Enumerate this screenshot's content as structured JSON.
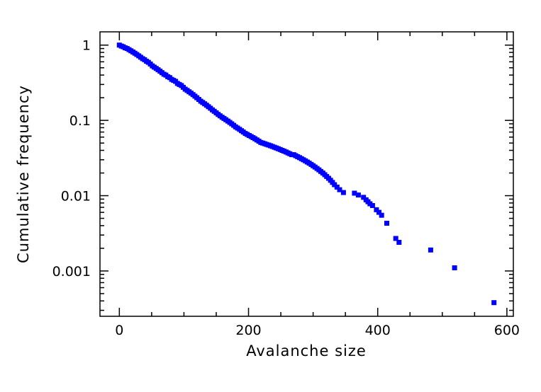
{
  "chart_data": {
    "type": "scatter",
    "xlabel": "Avalanche size",
    "ylabel": "Cumulative frequency",
    "xlim": [
      -30,
      610
    ],
    "ylim": [
      0.00025,
      1.5
    ],
    "yscale": "log",
    "grid": false,
    "marker_color": "#0000ff",
    "x_ticks": [
      0,
      200,
      400,
      600
    ],
    "x_tick_labels": [
      "0",
      "200",
      "400",
      "600"
    ],
    "y_ticks": [
      1,
      0.1,
      0.01,
      0.001
    ],
    "y_tick_labels": [
      "1",
      "0.1",
      "0.01",
      "0.001"
    ],
    "points": {
      "x": [
        0,
        3,
        6,
        9,
        12,
        15,
        18,
        21,
        24,
        27,
        30,
        33,
        36,
        39,
        42,
        45,
        48,
        51,
        54,
        57,
        60,
        63,
        66,
        69,
        72,
        75,
        78,
        81,
        84,
        87,
        90,
        93,
        96,
        99,
        102,
        105,
        108,
        111,
        114,
        117,
        120,
        123,
        126,
        129,
        132,
        135,
        138,
        141,
        144,
        147,
        150,
        153,
        156,
        159,
        162,
        165,
        168,
        171,
        174,
        177,
        180,
        183,
        186,
        189,
        192,
        195,
        198,
        201,
        204,
        207,
        210,
        213,
        216,
        219,
        222,
        225,
        228,
        231,
        234,
        237,
        240,
        243,
        246,
        249,
        252,
        255,
        258,
        261,
        264,
        267,
        270,
        273,
        276,
        279,
        282,
        285,
        288,
        291,
        294,
        297,
        300,
        303,
        306,
        309,
        312,
        315,
        318,
        321,
        324,
        327,
        330,
        333,
        337,
        341,
        347,
        364,
        370,
        378,
        382,
        385,
        388,
        392,
        398,
        402,
        406,
        414,
        428,
        433,
        482,
        519,
        580
      ],
      "y": [
        1,
        0.97,
        0.95,
        0.92,
        0.9,
        0.87,
        0.84,
        0.81,
        0.78,
        0.75,
        0.72,
        0.69,
        0.66,
        0.64,
        0.61,
        0.59,
        0.56,
        0.53,
        0.51,
        0.49,
        0.47,
        0.45,
        0.43,
        0.41,
        0.4,
        0.38,
        0.37,
        0.35,
        0.34,
        0.33,
        0.31,
        0.3,
        0.29,
        0.275,
        0.26,
        0.25,
        0.24,
        0.23,
        0.22,
        0.21,
        0.2,
        0.19,
        0.18,
        0.173,
        0.166,
        0.159,
        0.152,
        0.145,
        0.138,
        0.132,
        0.126,
        0.12,
        0.115,
        0.11,
        0.106,
        0.102,
        0.098,
        0.094,
        0.09,
        0.086,
        0.082,
        0.079,
        0.076,
        0.073,
        0.07,
        0.067,
        0.065,
        0.063,
        0.061,
        0.059,
        0.057,
        0.055,
        0.053,
        0.051,
        0.05,
        0.049,
        0.048,
        0.047,
        0.046,
        0.045,
        0.044,
        0.043,
        0.042,
        0.041,
        0.04,
        0.039,
        0.038,
        0.037,
        0.036,
        0.035,
        0.035,
        0.034,
        0.033,
        0.032,
        0.031,
        0.03,
        0.029,
        0.028,
        0.027,
        0.026,
        0.025,
        0.024,
        0.023,
        0.022,
        0.021,
        0.02,
        0.019,
        0.018,
        0.017,
        0.016,
        0.015,
        0.014,
        0.013,
        0.012,
        0.011,
        0.0108,
        0.0102,
        0.0095,
        0.0088,
        0.0083,
        0.0078,
        0.0074,
        0.0065,
        0.006,
        0.0055,
        0.0043,
        0.0027,
        0.0024,
        0.0019,
        0.0011,
        0.00038
      ]
    }
  }
}
